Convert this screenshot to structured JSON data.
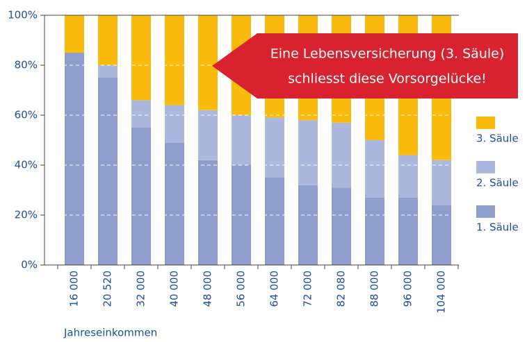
{
  "chart_data": {
    "type": "stacked_bar",
    "categories": [
      "16 000",
      "20 520",
      "32 000",
      "40 000",
      "48 000",
      "56 000",
      "64 000",
      "72 000",
      "82 080",
      "88 000",
      "96 000",
      "104 000"
    ],
    "series": [
      {
        "name": "1. Säule",
        "color": "#8e9fcd",
        "values": [
          85,
          75,
          55,
          49,
          42,
          40,
          35,
          32,
          31,
          27,
          27,
          24
        ]
      },
      {
        "name": "2. Säule",
        "color": "#abb7dd",
        "values": [
          0,
          5,
          11,
          15,
          20,
          20,
          24,
          26,
          26,
          23,
          17,
          18
        ]
      },
      {
        "name": "3. Säule",
        "color": "#fbbb0c",
        "values": [
          15,
          20,
          34,
          36,
          38,
          40,
          41,
          42,
          43,
          50,
          56,
          58
        ]
      }
    ],
    "ylim": [
      0,
      100
    ],
    "yticks": [
      {
        "value": 0,
        "label": "0%"
      },
      {
        "value": 20,
        "label": "20%"
      },
      {
        "value": 40,
        "label": "40%"
      },
      {
        "value": 60,
        "label": "60%"
      },
      {
        "value": 80,
        "label": "80%"
      },
      {
        "value": 100,
        "label": "100%"
      }
    ],
    "grid": true,
    "xlabel": "Jahreseinkommen",
    "annotation": [
      "Eine Lebensversicherung (3. Säule)",
      "schliesst diese Vorsorgelücke!"
    ]
  }
}
